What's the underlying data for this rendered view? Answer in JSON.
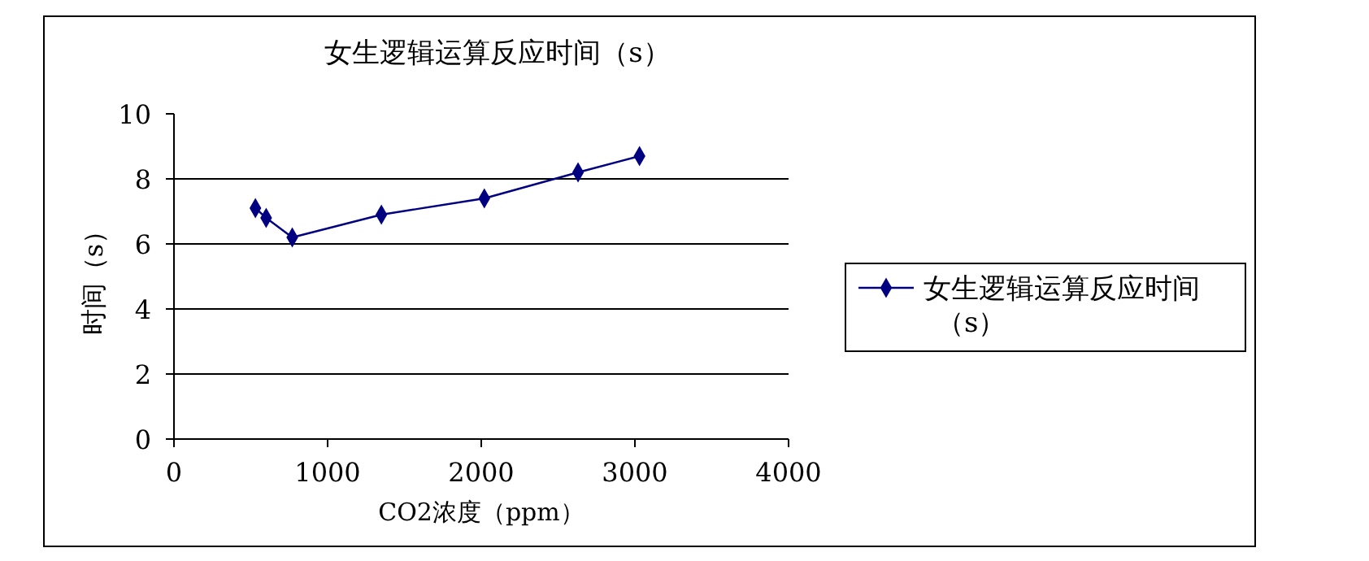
{
  "chart_data": {
    "type": "line",
    "title": "女生逻辑运算反应时间（s）",
    "xlabel": "CO2浓度（ppm）",
    "ylabel": "时间（s）",
    "x": [
      530,
      600,
      770,
      1350,
      2020,
      2630,
      3030
    ],
    "series": [
      {
        "name": "女生逻辑运算反应时间（s）",
        "color": "#000080",
        "values": [
          7.1,
          6.8,
          6.2,
          6.9,
          7.4,
          8.2,
          8.7
        ]
      }
    ],
    "xlim": [
      0,
      4000
    ],
    "xticks": [
      0,
      1000,
      2000,
      3000,
      4000
    ],
    "ylim": [
      0,
      10
    ],
    "yticks": [
      0,
      2,
      4,
      6,
      8,
      10
    ],
    "grid": "y",
    "legend": "right",
    "marker": "diamond",
    "line_style": "solid"
  }
}
